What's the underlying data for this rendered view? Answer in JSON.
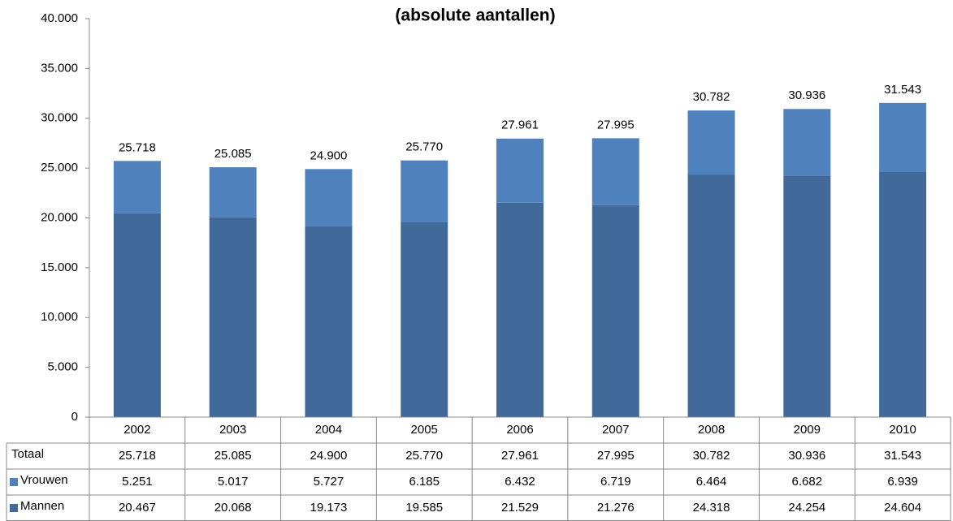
{
  "chart_data": {
    "type": "bar",
    "stacked": true,
    "title": "(absolute aantallen)",
    "categories": [
      "2002",
      "2003",
      "2004",
      "2005",
      "2006",
      "2007",
      "2008",
      "2009",
      "2010"
    ],
    "series": [
      {
        "name": "Mannen",
        "color": "#416a9b",
        "values": [
          20467,
          20068,
          19173,
          19585,
          21529,
          21276,
          24318,
          24254,
          24604
        ],
        "value_labels": [
          "20.467",
          "20.068",
          "19.173",
          "19.585",
          "21.529",
          "21.276",
          "24.318",
          "24.254",
          "24.604"
        ]
      },
      {
        "name": "Vrouwen",
        "color": "#4f81bd",
        "values": [
          5251,
          5017,
          5727,
          6185,
          6432,
          6719,
          6464,
          6682,
          6939
        ],
        "value_labels": [
          "5.251",
          "5.017",
          "5.727",
          "6.185",
          "6.432",
          "6.719",
          "6.464",
          "6.682",
          "6.939"
        ]
      }
    ],
    "totals": {
      "name": "Totaal",
      "values": [
        25718,
        25085,
        24900,
        25770,
        27961,
        27995,
        30782,
        30936,
        31543
      ],
      "value_labels": [
        "25.718",
        "25.085",
        "24.900",
        "25.770",
        "27.961",
        "27.995",
        "30.782",
        "30.936",
        "31.543"
      ]
    },
    "ylim": [
      0,
      40000
    ],
    "yticks": [
      0,
      {
        "value": 5000,
        "label": "5.000"
      },
      {
        "value": 10000,
        "label": "10.000"
      },
      {
        "value": 15000,
        "label": "15.000"
      },
      {
        "value": 20000,
        "label": "20.000"
      },
      {
        "value": 25000,
        "label": "25.000"
      },
      {
        "value": 30000,
        "label": "30.000"
      },
      {
        "value": 35000,
        "label": "35.000"
      },
      {
        "value": 40000,
        "label": "40.000"
      }
    ],
    "grid": false
  }
}
